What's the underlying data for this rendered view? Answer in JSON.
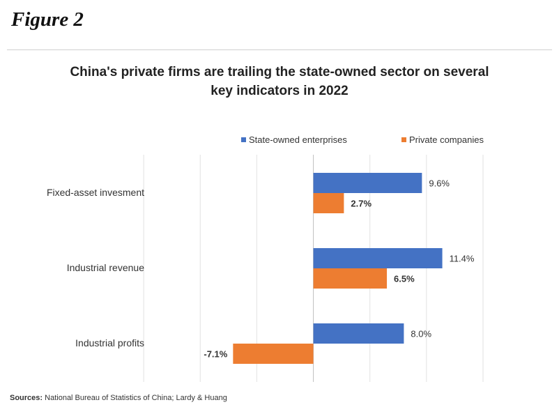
{
  "figure_label": "Figure 2",
  "sources": {
    "label": "Sources:",
    "text": "National Bureau of Statistics of China; Lardy & Huang"
  },
  "chart_data": {
    "type": "bar",
    "orientation": "horizontal",
    "title_line1": "China's private firms are trailing the state-owned sector on several",
    "title_line2": "key indicators in 2022",
    "categories": [
      "Fixed-asset invesment",
      "Industrial revenue",
      "Industrial profits"
    ],
    "series": [
      {
        "name": "State-owned enterprises",
        "color": "#4472C4",
        "values": [
          9.6,
          11.4,
          8.0
        ],
        "labels": [
          "9.6%",
          "11.4%",
          "8.0%"
        ]
      },
      {
        "name": "Private companies",
        "color": "#ED7D31",
        "values": [
          2.7,
          6.5,
          -7.1
        ],
        "labels": [
          "2.7%",
          "6.5%",
          "-7.1%"
        ]
      }
    ],
    "xlim": [
      -20,
      15
    ],
    "grid": true,
    "legend_position": "top-right"
  }
}
